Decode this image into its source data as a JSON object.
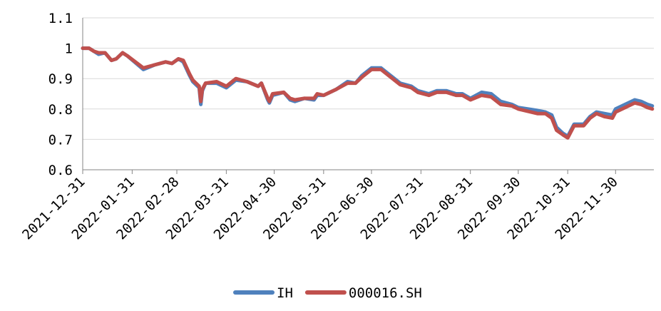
{
  "chart_data": {
    "type": "line",
    "x": [
      "2021-12-31",
      "2022-01-04",
      "2022-01-07",
      "2022-01-10",
      "2022-01-14",
      "2022-01-18",
      "2022-01-21",
      "2022-01-25",
      "2022-01-28",
      "2022-02-07",
      "2022-02-14",
      "2022-02-21",
      "2022-02-25",
      "2022-03-01",
      "2022-03-04",
      "2022-03-08",
      "2022-03-10",
      "2022-03-14",
      "2022-03-15",
      "2022-03-16",
      "2022-03-18",
      "2022-03-25",
      "2022-03-31",
      "2022-04-06",
      "2022-04-13",
      "2022-04-20",
      "2022-04-22",
      "2022-04-26",
      "2022-04-27",
      "2022-04-29",
      "2022-05-06",
      "2022-05-10",
      "2022-05-13",
      "2022-05-19",
      "2022-05-25",
      "2022-05-27",
      "2022-05-31",
      "2022-06-08",
      "2022-06-15",
      "2022-06-20",
      "2022-06-24",
      "2022-06-30",
      "2022-07-06",
      "2022-07-12",
      "2022-07-18",
      "2022-07-25",
      "2022-07-29",
      "2022-08-05",
      "2022-08-10",
      "2022-08-16",
      "2022-08-22",
      "2022-08-26",
      "2022-08-31",
      "2022-09-07",
      "2022-09-13",
      "2022-09-19",
      "2022-09-26",
      "2022-09-30",
      "2022-10-12",
      "2022-10-17",
      "2022-10-21",
      "2022-10-24",
      "2022-10-28",
      "2022-10-31",
      "2022-11-04",
      "2022-11-10",
      "2022-11-14",
      "2022-11-18",
      "2022-11-23",
      "2022-11-28",
      "2022-11-30",
      "2022-12-06",
      "2022-12-12",
      "2022-12-16",
      "2022-12-20",
      "2022-12-23"
    ],
    "series": [
      {
        "name": "IH",
        "color": "#4f81bd",
        "values": [
          1,
          1.0,
          0.99,
          0.98,
          0.985,
          0.96,
          0.965,
          0.985,
          0.975,
          0.93,
          0.945,
          0.955,
          0.95,
          0.965,
          0.955,
          0.91,
          0.89,
          0.87,
          0.815,
          0.86,
          0.885,
          0.885,
          0.87,
          0.895,
          0.89,
          0.875,
          0.885,
          0.83,
          0.82,
          0.845,
          0.855,
          0.83,
          0.825,
          0.835,
          0.83,
          0.845,
          0.845,
          0.865,
          0.89,
          0.885,
          0.91,
          0.935,
          0.935,
          0.91,
          0.885,
          0.875,
          0.86,
          0.85,
          0.86,
          0.86,
          0.85,
          0.85,
          0.835,
          0.855,
          0.85,
          0.825,
          0.815,
          0.805,
          0.795,
          0.79,
          0.78,
          0.74,
          0.72,
          0.71,
          0.75,
          0.75,
          0.775,
          0.79,
          0.785,
          0.78,
          0.8,
          0.815,
          0.83,
          0.825,
          0.815,
          0.81
        ]
      },
      {
        "name": "000016.SH",
        "color": "#c0504d",
        "values": [
          1,
          1.0,
          0.99,
          0.985,
          0.985,
          0.96,
          0.965,
          0.985,
          0.975,
          0.935,
          0.945,
          0.955,
          0.95,
          0.965,
          0.96,
          0.915,
          0.895,
          0.875,
          0.825,
          0.865,
          0.885,
          0.89,
          0.875,
          0.9,
          0.89,
          0.875,
          0.885,
          0.835,
          0.825,
          0.85,
          0.855,
          0.835,
          0.83,
          0.835,
          0.835,
          0.85,
          0.845,
          0.865,
          0.885,
          0.885,
          0.905,
          0.93,
          0.93,
          0.905,
          0.88,
          0.87,
          0.855,
          0.845,
          0.855,
          0.855,
          0.845,
          0.845,
          0.83,
          0.845,
          0.84,
          0.815,
          0.81,
          0.8,
          0.785,
          0.785,
          0.77,
          0.73,
          0.715,
          0.705,
          0.745,
          0.745,
          0.77,
          0.785,
          0.775,
          0.77,
          0.79,
          0.805,
          0.82,
          0.815,
          0.805,
          0.8
        ]
      }
    ],
    "xlim": [
      "2021-12-31",
      "2022-12-24"
    ],
    "xticks": [
      "2021-12-31",
      "2022-01-31",
      "2022-02-28",
      "2022-03-31",
      "2022-04-30",
      "2022-05-31",
      "2022-06-30",
      "2022-07-31",
      "2022-08-31",
      "2022-09-30",
      "2022-10-31",
      "2022-11-30"
    ],
    "ylim": [
      0.6,
      1.1
    ],
    "yticks": [
      0.6,
      0.7,
      0.8,
      0.9,
      1,
      1.1
    ],
    "grid": true
  }
}
